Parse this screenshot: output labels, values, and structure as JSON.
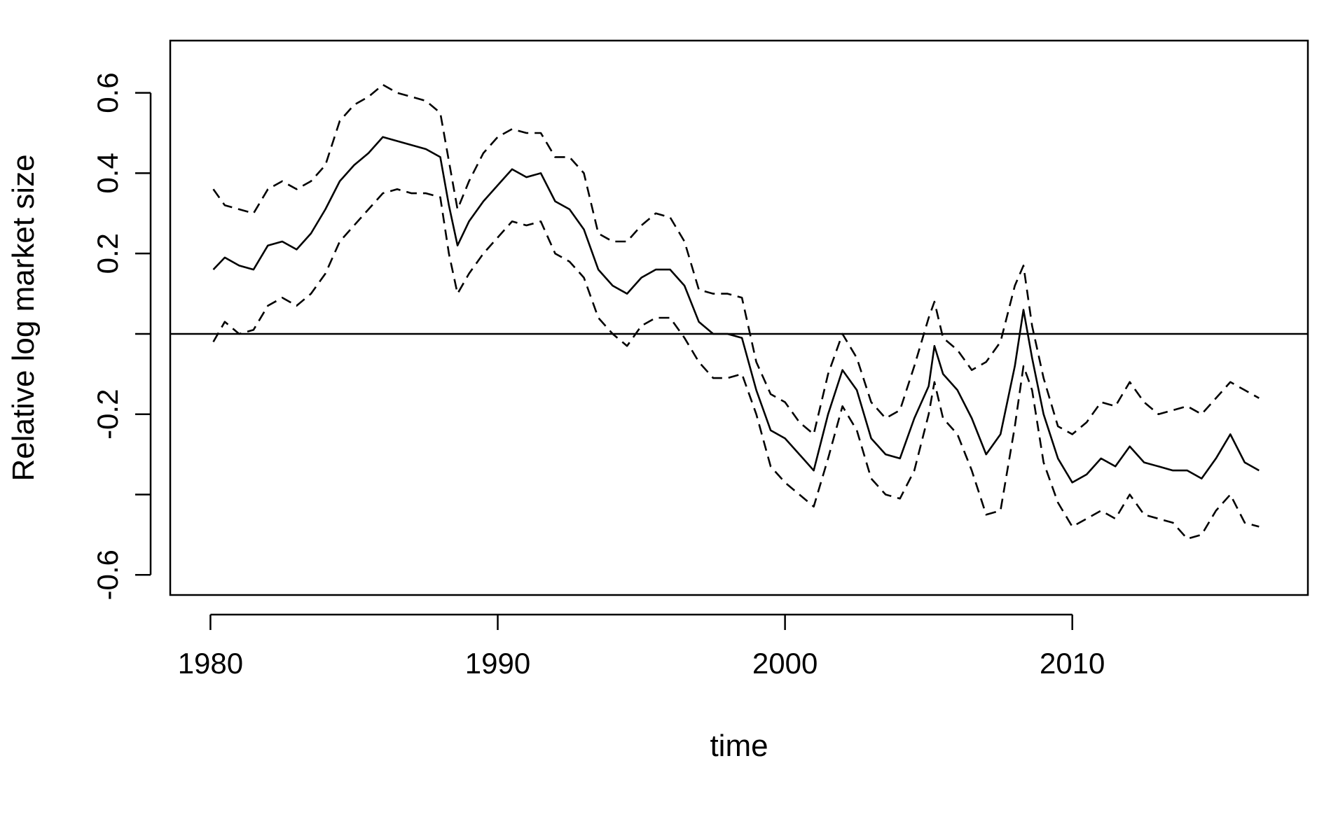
{
  "chart_data": {
    "type": "line",
    "title": "",
    "xlabel": "time",
    "ylabel": "Relative log market size",
    "xlim": [
      1978.6,
      2018.2
    ],
    "ylim": [
      -0.65,
      0.73
    ],
    "x_ticks": [
      1980,
      1990,
      2000,
      2010
    ],
    "y_ticks": [
      -0.6,
      -0.4,
      -0.2,
      0.0,
      0.2,
      0.4,
      0.6
    ],
    "y_tick_labels": [
      "-0.6",
      "",
      "-0.2",
      "",
      "0.2",
      "0.4",
      "0.6"
    ],
    "hline": 0,
    "grid": false,
    "legend": "none",
    "x": [
      1980.1,
      1980.5,
      1981.0,
      1981.5,
      1982.0,
      1982.5,
      1983.0,
      1983.5,
      1984.0,
      1984.5,
      1985.0,
      1985.5,
      1986.0,
      1986.5,
      1987.0,
      1987.5,
      1988.0,
      1988.3,
      1988.6,
      1989.0,
      1989.5,
      1990.0,
      1990.5,
      1991.0,
      1991.5,
      1992.0,
      1992.5,
      1993.0,
      1993.5,
      1994.0,
      1994.5,
      1995.0,
      1995.5,
      1996.0,
      1996.5,
      1997.0,
      1997.5,
      1998.0,
      1998.5,
      1999.0,
      1999.5,
      2000.0,
      2000.5,
      2001.0,
      2001.5,
      2002.0,
      2002.5,
      2003.0,
      2003.5,
      2004.0,
      2004.5,
      2005.0,
      2005.2,
      2005.5,
      2006.0,
      2006.5,
      2007.0,
      2007.5,
      2008.0,
      2008.3,
      2008.6,
      2009.0,
      2009.5,
      2010.0,
      2010.5,
      2011.0,
      2011.5,
      2012.0,
      2012.5,
      2013.0,
      2013.5,
      2014.0,
      2014.5,
      2015.0,
      2015.5,
      2016.0,
      2016.5
    ],
    "series": [
      {
        "style": "solid",
        "values": [
          0.16,
          0.19,
          0.17,
          0.16,
          0.22,
          0.23,
          0.21,
          0.25,
          0.31,
          0.38,
          0.42,
          0.45,
          0.49,
          0.48,
          0.47,
          0.46,
          0.44,
          0.32,
          0.22,
          0.28,
          0.33,
          0.37,
          0.41,
          0.39,
          0.4,
          0.33,
          0.31,
          0.26,
          0.16,
          0.12,
          0.1,
          0.14,
          0.16,
          0.16,
          0.12,
          0.03,
          0.0,
          0.0,
          -0.01,
          -0.14,
          -0.24,
          -0.26,
          -0.3,
          -0.34,
          -0.2,
          -0.09,
          -0.14,
          -0.26,
          -0.3,
          -0.31,
          -0.21,
          -0.13,
          -0.03,
          -0.1,
          -0.14,
          -0.21,
          -0.3,
          -0.25,
          -0.08,
          0.06,
          -0.06,
          -0.2,
          -0.31,
          -0.37,
          -0.35,
          -0.31,
          -0.33,
          -0.28,
          -0.32,
          -0.33,
          -0.34,
          -0.34,
          -0.36,
          -0.31,
          -0.25,
          -0.32,
          -0.34
        ]
      },
      {
        "style": "dashed",
        "values": [
          0.36,
          0.32,
          0.31,
          0.3,
          0.36,
          0.38,
          0.36,
          0.38,
          0.42,
          0.53,
          0.57,
          0.59,
          0.62,
          0.6,
          0.59,
          0.58,
          0.55,
          0.43,
          0.31,
          0.38,
          0.45,
          0.49,
          0.51,
          0.5,
          0.5,
          0.44,
          0.44,
          0.4,
          0.25,
          0.23,
          0.23,
          0.27,
          0.3,
          0.29,
          0.23,
          0.11,
          0.1,
          0.1,
          0.09,
          -0.07,
          -0.15,
          -0.17,
          -0.22,
          -0.25,
          -0.1,
          0.0,
          -0.06,
          -0.17,
          -0.21,
          -0.19,
          -0.08,
          0.04,
          0.08,
          -0.01,
          -0.04,
          -0.09,
          -0.07,
          -0.02,
          0.12,
          0.17,
          0.02,
          -0.11,
          -0.23,
          -0.25,
          -0.22,
          -0.17,
          -0.18,
          -0.12,
          -0.17,
          -0.2,
          -0.19,
          -0.18,
          -0.2,
          -0.16,
          -0.12,
          -0.14,
          -0.16
        ]
      },
      {
        "style": "dashed",
        "values": [
          -0.02,
          0.03,
          0.0,
          0.01,
          0.07,
          0.09,
          0.07,
          0.1,
          0.15,
          0.23,
          0.27,
          0.31,
          0.35,
          0.36,
          0.35,
          0.35,
          0.34,
          0.2,
          0.1,
          0.15,
          0.2,
          0.24,
          0.28,
          0.27,
          0.28,
          0.2,
          0.18,
          0.14,
          0.04,
          0.0,
          -0.03,
          0.02,
          0.04,
          0.04,
          -0.01,
          -0.07,
          -0.11,
          -0.11,
          -0.1,
          -0.2,
          -0.33,
          -0.37,
          -0.4,
          -0.43,
          -0.31,
          -0.18,
          -0.24,
          -0.36,
          -0.4,
          -0.41,
          -0.34,
          -0.2,
          -0.12,
          -0.21,
          -0.25,
          -0.34,
          -0.45,
          -0.44,
          -0.23,
          -0.08,
          -0.14,
          -0.32,
          -0.42,
          -0.48,
          -0.46,
          -0.44,
          -0.46,
          -0.4,
          -0.45,
          -0.46,
          -0.47,
          -0.51,
          -0.5,
          -0.44,
          -0.4,
          -0.47,
          -0.48
        ]
      }
    ]
  }
}
